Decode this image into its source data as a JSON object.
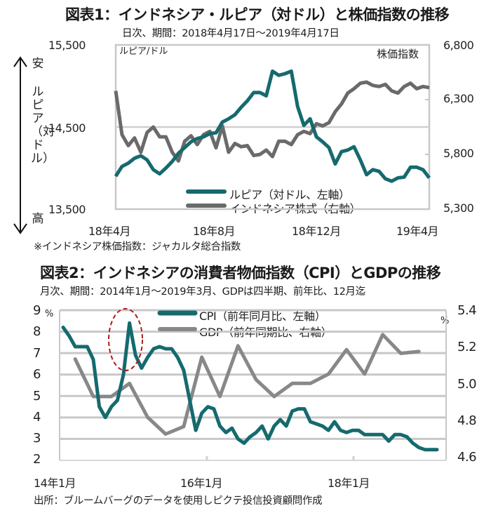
{
  "chart_data": [
    {
      "type": "line",
      "title": "図表1：インドネシア・ルピア（対ドル）と株価指数の推移",
      "subtitle": "日次、期間：2018年4月17日～2019年4月17日",
      "left_axis_label": "ルピア/ドル",
      "right_axis_label": "株価指数",
      "left_vertical_label": [
        "安",
        "ルピア（対ドル）",
        "高"
      ],
      "left_ylim": [
        13500,
        15500
      ],
      "left_ticks": [
        "15,500",
        "14,500",
        "13,500"
      ],
      "right_ylim": [
        5300,
        6800
      ],
      "right_ticks": [
        "6,800",
        "6,300",
        "5,800",
        "5,300"
      ],
      "x_ticks": [
        "18年4月",
        "18年8月",
        "18年12月",
        "19年4月"
      ],
      "grid": "horizontal",
      "legend_placement": "bottom-center",
      "note": "※インドネシア株価指数：ジャカルタ総合指数",
      "series": [
        {
          "name": "ルピア（対ドル、左軸）",
          "axis": "left",
          "color": "#156a6e",
          "x_frac": [
            0.0,
            0.02,
            0.04,
            0.06,
            0.08,
            0.1,
            0.12,
            0.14,
            0.16,
            0.18,
            0.2,
            0.22,
            0.24,
            0.26,
            0.28,
            0.3,
            0.32,
            0.34,
            0.36,
            0.38,
            0.4,
            0.42,
            0.44,
            0.46,
            0.48,
            0.5,
            0.52,
            0.54,
            0.56,
            0.58,
            0.6,
            0.62,
            0.64,
            0.66,
            0.68,
            0.7,
            0.72,
            0.74,
            0.76,
            0.78,
            0.8,
            0.82,
            0.84,
            0.86,
            0.88,
            0.9,
            0.92,
            0.94,
            0.96,
            0.98,
            1.0
          ],
          "values": [
            13900,
            14020,
            14060,
            14120,
            14150,
            14100,
            13980,
            13930,
            14000,
            14080,
            14180,
            14250,
            14320,
            14360,
            14380,
            14420,
            14430,
            14560,
            14600,
            14650,
            14740,
            14820,
            14920,
            14920,
            14880,
            15180,
            15130,
            15150,
            15180,
            14750,
            14520,
            14600,
            14380,
            14320,
            14250,
            14050,
            14200,
            14220,
            14260,
            14100,
            13920,
            13980,
            13960,
            13870,
            13840,
            13880,
            13890,
            14010,
            14010,
            13980,
            13880
          ]
        },
        {
          "name": "インドネシア株式（右軸）",
          "axis": "right",
          "color": "#6a6a6a",
          "x_frac": [
            0.0,
            0.02,
            0.04,
            0.06,
            0.08,
            0.1,
            0.12,
            0.14,
            0.16,
            0.18,
            0.2,
            0.22,
            0.24,
            0.26,
            0.28,
            0.3,
            0.32,
            0.34,
            0.36,
            0.38,
            0.4,
            0.42,
            0.44,
            0.46,
            0.48,
            0.5,
            0.52,
            0.54,
            0.56,
            0.58,
            0.6,
            0.62,
            0.64,
            0.66,
            0.68,
            0.7,
            0.72,
            0.74,
            0.76,
            0.78,
            0.8,
            0.82,
            0.84,
            0.86,
            0.88,
            0.9,
            0.92,
            0.94,
            0.96,
            0.98,
            1.0
          ],
          "values": [
            6380,
            5980,
            5880,
            5950,
            5820,
            6000,
            6050,
            5960,
            5960,
            5820,
            5740,
            5920,
            5970,
            5890,
            5980,
            6010,
            5860,
            6060,
            5820,
            5900,
            5870,
            5880,
            5790,
            5800,
            5840,
            5780,
            5920,
            5920,
            5890,
            5980,
            6010,
            5990,
            6080,
            6060,
            6090,
            6190,
            6260,
            6360,
            6400,
            6450,
            6460,
            6430,
            6420,
            6440,
            6380,
            6360,
            6420,
            6450,
            6400,
            6420,
            6410
          ]
        }
      ]
    },
    {
      "type": "line",
      "title": "図表2：インドネシアの消費者物価指数（CPI）とGDPの推移",
      "subtitle": "月次、期間：2014年1月～2019年3月、GDPは四半期、前年比、12月迄",
      "left_unit": "%",
      "right_unit": "%",
      "left_ylim": [
        2,
        9
      ],
      "left_ticks": [
        "9",
        "8",
        "7",
        "6",
        "5",
        "4",
        "3",
        "2"
      ],
      "right_ylim": [
        4.6,
        5.4
      ],
      "right_ticks": [
        "5.4",
        "5.2",
        "5.0",
        "4.8",
        "4.6"
      ],
      "x_ticks": [
        "14年1月",
        "16年1月",
        "18年1月"
      ],
      "grid": "horizontal",
      "legend_placement": "top-center",
      "annotation": "red dashed ellipse around CPI spike (late 2014)",
      "note": "出所：ブルームバーグのデータを使用しピクテ投信投資顧問作成",
      "series": [
        {
          "name": "CPI（前年同月比、左軸）",
          "axis": "left",
          "color": "#156a6e",
          "x_month": [
            0,
            1,
            2,
            3,
            4,
            5,
            6,
            7,
            8,
            9,
            10,
            11,
            12,
            13,
            14,
            15,
            16,
            17,
            18,
            19,
            20,
            21,
            22,
            23,
            24,
            25,
            26,
            27,
            28,
            29,
            30,
            31,
            32,
            33,
            34,
            35,
            36,
            37,
            38,
            39,
            40,
            41,
            42,
            43,
            44,
            45,
            46,
            47,
            48,
            49,
            50,
            51,
            52,
            53,
            54,
            55,
            56,
            57,
            58,
            59,
            60,
            61,
            62
          ],
          "values": [
            8.2,
            7.8,
            7.3,
            7.3,
            7.3,
            6.7,
            4.5,
            4.0,
            4.5,
            4.8,
            6.0,
            8.4,
            6.9,
            6.3,
            6.8,
            7.2,
            7.3,
            7.2,
            7.2,
            6.8,
            6.2,
            4.8,
            3.4,
            4.2,
            4.5,
            4.4,
            3.6,
            3.3,
            3.5,
            3.0,
            2.8,
            3.1,
            3.3,
            3.6,
            3.0,
            3.6,
            3.9,
            3.6,
            4.3,
            4.4,
            4.4,
            3.8,
            3.7,
            3.6,
            3.4,
            3.8,
            3.4,
            3.3,
            3.4,
            3.4,
            3.2,
            3.2,
            3.2,
            3.2,
            2.9,
            3.2,
            3.2,
            3.1,
            2.8,
            2.6,
            2.5,
            2.5,
            2.5
          ]
        },
        {
          "name": "GDP（前年同期比、右軸）",
          "axis": "right",
          "color": "#888888",
          "x_month": [
            2,
            5,
            8,
            11,
            14,
            17,
            20,
            23,
            26,
            29,
            32,
            35,
            38,
            41,
            44,
            47,
            50,
            53,
            56,
            59
          ],
          "values": [
            5.14,
            4.94,
            4.94,
            5.01,
            4.83,
            4.74,
            4.78,
            5.15,
            4.94,
            5.21,
            5.03,
            4.94,
            5.01,
            5.01,
            5.06,
            5.19,
            5.06,
            5.27,
            5.17,
            5.18
          ]
        }
      ]
    }
  ]
}
